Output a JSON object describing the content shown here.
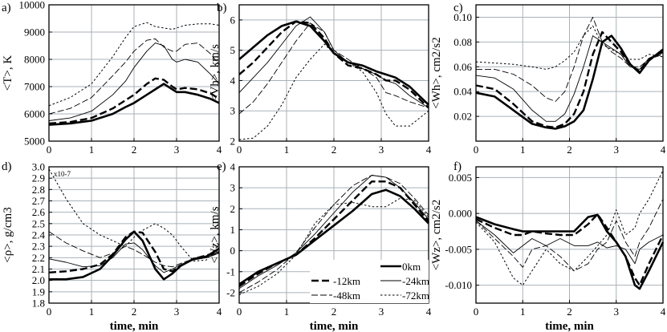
{
  "figure": {
    "time_unit_note": "time in minutes",
    "legend": {
      "entries": [
        {
          "label": "0km",
          "series_key": "s0"
        },
        {
          "label": "-12km",
          "series_key": "s12"
        },
        {
          "label": "-24km",
          "series_key": "s24"
        },
        {
          "label": "-48km",
          "series_key": "s48"
        },
        {
          "label": "-72km",
          "series_key": "s72"
        }
      ]
    }
  },
  "chart_data": [
    {
      "type": "line",
      "panel": "a)",
      "title": "",
      "ylabel": "<T>, K",
      "xlabel": "",
      "xlim": [
        0,
        4
      ],
      "ylim": [
        5000,
        10000
      ],
      "xticks": [
        0,
        1,
        2,
        3,
        4
      ],
      "xticklabels": [
        "0",
        "1",
        "2",
        "3",
        "4"
      ],
      "yticks": [
        5000,
        6000,
        7000,
        8000,
        9000,
        10000
      ],
      "yticklabels": [
        "5000",
        "6000",
        "7000",
        "8000",
        "9000",
        "10000"
      ],
      "x": [
        0,
        0.5,
        1,
        1.5,
        1.8,
        2,
        2.3,
        2.5,
        2.7,
        2.9,
        3,
        3.2,
        3.5,
        3.8,
        4
      ],
      "series": [
        {
          "name": "0km",
          "values": [
            5600,
            5650,
            5750,
            6000,
            6250,
            6400,
            6700,
            6900,
            7100,
            6900,
            6800,
            6800,
            6700,
            6550,
            6400
          ]
        },
        {
          "name": "-12km",
          "values": [
            5650,
            5700,
            5850,
            6200,
            6500,
            6700,
            7100,
            7300,
            7250,
            7000,
            6900,
            6950,
            6900,
            6750,
            6550
          ]
        },
        {
          "name": "-24km",
          "values": [
            5750,
            5850,
            6100,
            6700,
            7200,
            7700,
            8300,
            8600,
            8500,
            8000,
            7900,
            8000,
            7900,
            7450,
            7100
          ]
        },
        {
          "name": "-48km",
          "values": [
            6000,
            6200,
            6600,
            7400,
            7900,
            8300,
            8700,
            8750,
            8450,
            8300,
            8300,
            8550,
            8600,
            8200,
            7800
          ]
        },
        {
          "name": "-72km",
          "values": [
            6300,
            6600,
            7100,
            8100,
            8800,
            9200,
            9350,
            9200,
            9150,
            9100,
            9150,
            9250,
            9300,
            9300,
            9250
          ]
        }
      ]
    },
    {
      "type": "line",
      "panel": "b)",
      "title": "",
      "ylabel": "<Vh>, km/s",
      "xlabel": "",
      "xlim": [
        0,
        4
      ],
      "ylim": [
        2,
        6.5
      ],
      "xticks": [
        0,
        1,
        2,
        3,
        4
      ],
      "xticklabels": [
        "0",
        "1",
        "2",
        "3",
        "4"
      ],
      "yticks": [
        2,
        3,
        4,
        5,
        6
      ],
      "yticklabels": [
        "2",
        "3",
        "4",
        "5",
        "6"
      ],
      "x": [
        0,
        0.3,
        0.6,
        0.9,
        1.2,
        1.5,
        1.8,
        2,
        2.3,
        2.6,
        2.9,
        3.1,
        3.3,
        3.6,
        4
      ],
      "series": [
        {
          "name": "0km",
          "values": [
            4.7,
            5.1,
            5.5,
            5.8,
            5.95,
            5.8,
            5.3,
            4.9,
            4.6,
            4.5,
            4.3,
            4.2,
            4.1,
            3.8,
            3.2
          ]
        },
        {
          "name": "-12km",
          "values": [
            4.2,
            4.6,
            5.1,
            5.6,
            5.95,
            5.9,
            5.4,
            4.9,
            4.5,
            4.4,
            4.2,
            4.0,
            4.0,
            3.7,
            3.1
          ]
        },
        {
          "name": "-24km",
          "values": [
            3.6,
            4.1,
            4.6,
            5.2,
            5.8,
            6.1,
            5.6,
            5.0,
            4.6,
            4.4,
            4.2,
            4.0,
            3.9,
            3.5,
            3.1
          ]
        },
        {
          "name": "-48km",
          "values": [
            2.9,
            3.3,
            3.9,
            4.6,
            5.3,
            5.9,
            5.6,
            5.0,
            4.7,
            4.4,
            4.1,
            3.6,
            3.5,
            3.3,
            3.1
          ]
        },
        {
          "name": "-72km",
          "values": [
            2.05,
            2.1,
            2.5,
            3.2,
            4.1,
            4.7,
            5.2,
            4.9,
            4.6,
            4.3,
            3.6,
            2.9,
            2.5,
            2.5,
            3.0
          ]
        }
      ]
    },
    {
      "type": "line",
      "panel": "c)",
      "title": "",
      "ylabel": "<Wh>, cm2/s2",
      "xlabel": "",
      "xlim": [
        0,
        4
      ],
      "ylim": [
        0,
        0.11
      ],
      "xticks": [
        0,
        1,
        2,
        3,
        4
      ],
      "xticklabels": [
        "0",
        "1",
        "2",
        "3",
        "4"
      ],
      "yticks": [
        0.02,
        0.04,
        0.06,
        0.08,
        0.1
      ],
      "yticklabels": [
        "0.02",
        "0.04",
        "0.06",
        "0.08",
        "0.10"
      ],
      "x": [
        0,
        0.4,
        0.8,
        1.2,
        1.5,
        1.7,
        1.9,
        2.1,
        2.3,
        2.5,
        2.7,
        2.9,
        3.1,
        3.3,
        3.5,
        3.7,
        4
      ],
      "series": [
        {
          "name": "0km",
          "values": [
            0.039,
            0.036,
            0.025,
            0.014,
            0.011,
            0.01,
            0.012,
            0.016,
            0.025,
            0.05,
            0.08,
            0.085,
            0.075,
            0.062,
            0.055,
            0.065,
            0.074
          ]
        },
        {
          "name": "-12km",
          "values": [
            0.045,
            0.042,
            0.03,
            0.016,
            0.012,
            0.011,
            0.014,
            0.022,
            0.04,
            0.07,
            0.088,
            0.08,
            0.072,
            0.062,
            0.056,
            0.066,
            0.072
          ]
        },
        {
          "name": "-24km",
          "values": [
            0.053,
            0.051,
            0.042,
            0.025,
            0.016,
            0.016,
            0.022,
            0.038,
            0.06,
            0.085,
            0.08,
            0.075,
            0.07,
            0.06,
            0.058,
            0.067,
            0.072
          ]
        },
        {
          "name": "-48km",
          "values": [
            0.058,
            0.058,
            0.054,
            0.045,
            0.035,
            0.032,
            0.04,
            0.06,
            0.085,
            0.1,
            0.08,
            0.072,
            0.067,
            0.06,
            0.06,
            0.066,
            0.07
          ]
        },
        {
          "name": "-72km",
          "values": [
            0.064,
            0.063,
            0.062,
            0.06,
            0.058,
            0.06,
            0.065,
            0.072,
            0.085,
            0.093,
            0.078,
            0.074,
            0.07,
            0.066,
            0.066,
            0.07,
            0.068
          ]
        }
      ]
    },
    {
      "type": "line",
      "panel": "d)",
      "title": "",
      "ylabel": "<ρ>, g/cm3",
      "xlabel": "time, min",
      "scale_note": "x10-7",
      "xlim": [
        0,
        4
      ],
      "ylim": [
        1.8,
        3.0
      ],
      "xticks": [
        0,
        1,
        2,
        3,
        4
      ],
      "xticklabels": [
        "0",
        "1",
        "2",
        "3",
        "4"
      ],
      "yticks": [
        1.8,
        1.9,
        2.0,
        2.1,
        2.2,
        2.3,
        2.4,
        2.5,
        2.6,
        2.7,
        2.8,
        2.9,
        3.0
      ],
      "yticklabels": [
        "1.8",
        "1.9",
        "2.0",
        "2.1",
        "2.2",
        "2.3",
        "2.4",
        "2.5",
        "2.6",
        "2.7",
        "2.8",
        "2.9",
        "3.0"
      ],
      "x": [
        0,
        0.4,
        0.8,
        1.2,
        1.5,
        1.8,
        2,
        2.2,
        2.5,
        2.7,
        2.9,
        3.1,
        3.4,
        3.7,
        4
      ],
      "series": [
        {
          "name": "0km",
          "values": [
            2.01,
            2.01,
            2.03,
            2.1,
            2.22,
            2.36,
            2.43,
            2.35,
            2.1,
            2.01,
            2.06,
            2.13,
            2.19,
            2.21,
            2.28
          ]
        },
        {
          "name": "-12km",
          "values": [
            2.07,
            2.08,
            2.1,
            2.14,
            2.23,
            2.38,
            2.43,
            2.42,
            2.25,
            2.1,
            2.08,
            2.13,
            2.19,
            2.22,
            2.25
          ]
        },
        {
          "name": "-24km",
          "values": [
            2.19,
            2.16,
            2.12,
            2.13,
            2.2,
            2.32,
            2.33,
            2.27,
            2.13,
            2.07,
            2.1,
            2.14,
            2.18,
            2.2,
            2.24
          ]
        },
        {
          "name": "-48km",
          "values": [
            2.43,
            2.33,
            2.26,
            2.2,
            2.24,
            2.3,
            2.27,
            2.23,
            2.16,
            2.13,
            2.12,
            2.15,
            2.19,
            2.2,
            2.24
          ]
        },
        {
          "name": "-72km",
          "values": [
            2.98,
            2.72,
            2.5,
            2.4,
            2.35,
            2.3,
            2.38,
            2.44,
            2.5,
            2.46,
            2.4,
            2.3,
            2.17,
            2.18,
            2.32
          ]
        }
      ]
    },
    {
      "type": "line",
      "panel": "e)",
      "title": "",
      "ylabel": "<Vz>, km/s",
      "xlabel": "time, min",
      "xlim": [
        0,
        4
      ],
      "ylim": [
        -2.5,
        4
      ],
      "xticks": [
        0,
        1,
        2,
        3,
        4
      ],
      "xticklabels": [
        "0",
        "1",
        "2",
        "3",
        "4"
      ],
      "yticks": [
        -2,
        -1,
        0,
        1,
        2,
        3,
        4
      ],
      "yticklabels": [
        "-2",
        "-1",
        "0",
        "1",
        "2",
        "3",
        "4"
      ],
      "x": [
        0,
        0.4,
        0.8,
        1.2,
        1.6,
        2,
        2.4,
        2.8,
        3.1,
        3.4,
        3.7,
        4
      ],
      "series": [
        {
          "name": "0km",
          "values": [
            -1.6,
            -1.0,
            -0.6,
            -0.2,
            0.5,
            1.2,
            1.9,
            2.7,
            2.9,
            2.6,
            2.0,
            1.3
          ]
        },
        {
          "name": "-12km",
          "values": [
            -1.7,
            -1.1,
            -0.6,
            -0.2,
            0.6,
            1.5,
            2.4,
            3.3,
            3.3,
            3.0,
            2.2,
            1.4
          ]
        },
        {
          "name": "-24km",
          "values": [
            -1.8,
            -1.2,
            -0.7,
            -0.1,
            0.8,
            1.8,
            2.8,
            3.6,
            3.5,
            3.0,
            2.3,
            1.5
          ]
        },
        {
          "name": "-48km",
          "values": [
            -2.0,
            -1.5,
            -0.9,
            -0.1,
            1.1,
            2.2,
            3.1,
            3.6,
            3.5,
            3.2,
            2.5,
            1.7
          ]
        },
        {
          "name": "-72km",
          "values": [
            -2.1,
            -1.7,
            -1.1,
            -0.2,
            1.3,
            2.2,
            2.3,
            2.1,
            2.1,
            2.5,
            2.4,
            1.6
          ]
        }
      ]
    },
    {
      "type": "line",
      "panel": "f)",
      "title": "",
      "ylabel": "<Wz>, cm2/s2",
      "xlabel": "time, min",
      "xlim": [
        0,
        4
      ],
      "ylim": [
        -0.0125,
        0.0065
      ],
      "xticks": [
        0,
        1,
        2,
        3,
        4
      ],
      "xticklabels": [
        "0",
        "1",
        "2",
        "3",
        "4"
      ],
      "yticks": [
        0.005,
        0.0,
        -0.005,
        -0.01
      ],
      "yticklabels": [
        "0.005",
        "0.000",
        "-0.005",
        "-0.010"
      ],
      "x": [
        0,
        0.4,
        0.8,
        1.0,
        1.2,
        1.5,
        1.8,
        2.1,
        2.4,
        2.6,
        2.8,
        3.0,
        3.2,
        3.4,
        3.5,
        3.7,
        4
      ],
      "series": [
        {
          "name": "0km",
          "values": [
            -0.0005,
            -0.0015,
            -0.0022,
            -0.0025,
            -0.0025,
            -0.0025,
            -0.0025,
            -0.0025,
            -0.0005,
            -0.0002,
            -0.0025,
            -0.004,
            -0.006,
            -0.01,
            -0.0105,
            -0.008,
            -0.004
          ]
        },
        {
          "name": "-12km",
          "values": [
            -0.0008,
            -0.002,
            -0.003,
            -0.003,
            -0.0025,
            -0.0028,
            -0.003,
            -0.003,
            -0.0015,
            -0.0001,
            -0.002,
            -0.004,
            -0.006,
            -0.009,
            -0.01,
            -0.007,
            -0.003
          ]
        },
        {
          "name": "-24km",
          "values": [
            -0.001,
            -0.003,
            -0.0055,
            -0.0045,
            -0.0035,
            -0.0045,
            -0.0035,
            -0.0045,
            -0.0045,
            -0.004,
            -0.0048,
            -0.0045,
            -0.005,
            -0.007,
            -0.005,
            -0.004,
            -0.003
          ]
        },
        {
          "name": "-48km",
          "values": [
            -0.001,
            -0.0035,
            -0.006,
            -0.0075,
            -0.005,
            -0.0045,
            -0.006,
            -0.008,
            -0.007,
            -0.005,
            -0.004,
            -0.001,
            -0.004,
            -0.006,
            -0.004,
            -0.002,
            0.002
          ]
        },
        {
          "name": "-72km",
          "values": [
            -0.0012,
            -0.004,
            -0.009,
            -0.01,
            -0.008,
            -0.005,
            -0.007,
            -0.008,
            -0.006,
            -0.0045,
            -0.003,
            0.0005,
            -0.003,
            -0.002,
            0.0,
            0.002,
            0.006
          ]
        }
      ]
    }
  ]
}
